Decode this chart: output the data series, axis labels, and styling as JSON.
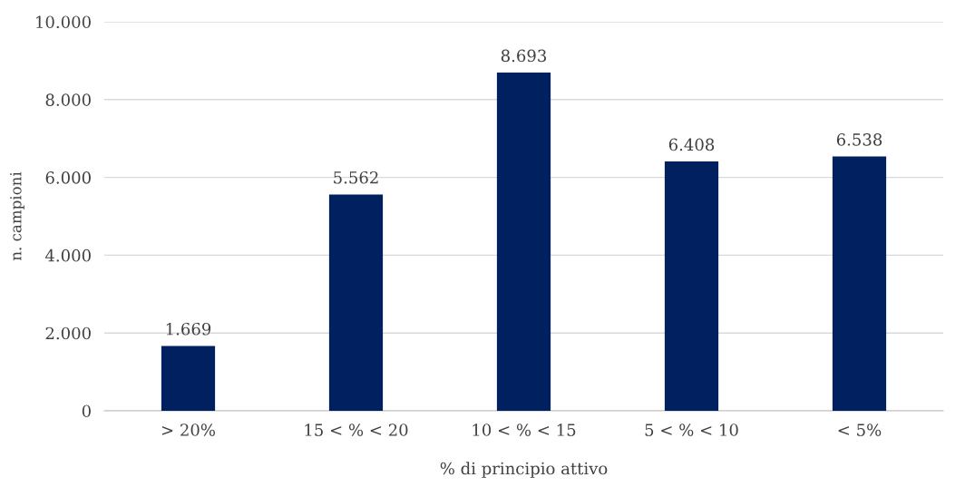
{
  "chart_data": {
    "type": "bar",
    "xlabel": "% di principio attivo",
    "ylabel": "n. campioni",
    "categories": [
      "> 20%",
      "15 < % < 20",
      "10 < % < 15",
      "5 < % < 10",
      "< 5%"
    ],
    "values": [
      1669,
      5562,
      8693,
      6408,
      6538
    ],
    "value_labels": [
      "1.669",
      "5.562",
      "8.693",
      "6.408",
      "6.538"
    ],
    "color": "#002060",
    "ylim": [
      0,
      10000
    ],
    "yticks": [
      {
        "value": 0,
        "label": "0"
      },
      {
        "value": 2000,
        "label": "2.000"
      },
      {
        "value": 4000,
        "label": "4.000"
      },
      {
        "value": 6000,
        "label": "6.000"
      },
      {
        "value": 8000,
        "label": "8.000"
      },
      {
        "value": 10000,
        "label": "10.000"
      }
    ],
    "grid": "y"
  }
}
